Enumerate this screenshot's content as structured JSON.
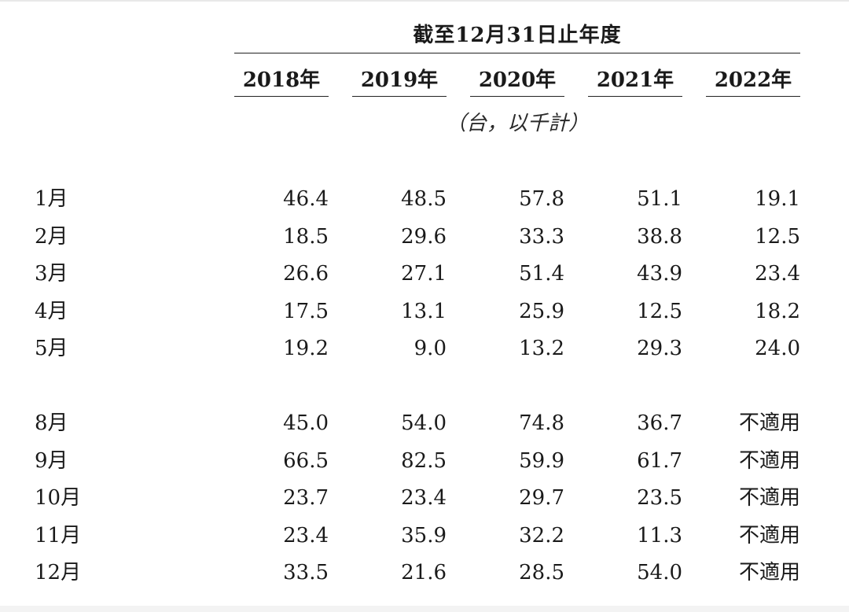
{
  "table": {
    "period_header": "截至12月31日止年度",
    "years": [
      "2018年",
      "2019年",
      "2020年",
      "2021年",
      "2022年"
    ],
    "unit": "（台，以千計）",
    "group1": [
      {
        "month": "1月",
        "values": [
          "46.4",
          "48.5",
          "57.8",
          "51.1",
          "19.1"
        ]
      },
      {
        "month": "2月",
        "values": [
          "18.5",
          "29.6",
          "33.3",
          "38.8",
          "12.5"
        ]
      },
      {
        "month": "3月",
        "values": [
          "26.6",
          "27.1",
          "51.4",
          "43.9",
          "23.4"
        ]
      },
      {
        "month": "4月",
        "values": [
          "17.5",
          "13.1",
          "25.9",
          "12.5",
          "18.2"
        ]
      },
      {
        "month": "5月",
        "values": [
          "19.2",
          "9.0",
          "13.2",
          "29.3",
          "24.0"
        ]
      }
    ],
    "group2": [
      {
        "month": "8月",
        "values": [
          "45.0",
          "54.0",
          "74.8",
          "36.7",
          "不適用"
        ]
      },
      {
        "month": "9月",
        "values": [
          "66.5",
          "82.5",
          "59.9",
          "61.7",
          "不適用"
        ]
      },
      {
        "month": "10月",
        "values": [
          "23.7",
          "23.4",
          "29.7",
          "23.5",
          "不適用"
        ]
      },
      {
        "month": "11月",
        "values": [
          "23.4",
          "35.9",
          "32.2",
          "11.3",
          "不適用"
        ]
      },
      {
        "month": "12月",
        "values": [
          "33.5",
          "21.6",
          "28.5",
          "54.0",
          "不適用"
        ]
      }
    ]
  }
}
